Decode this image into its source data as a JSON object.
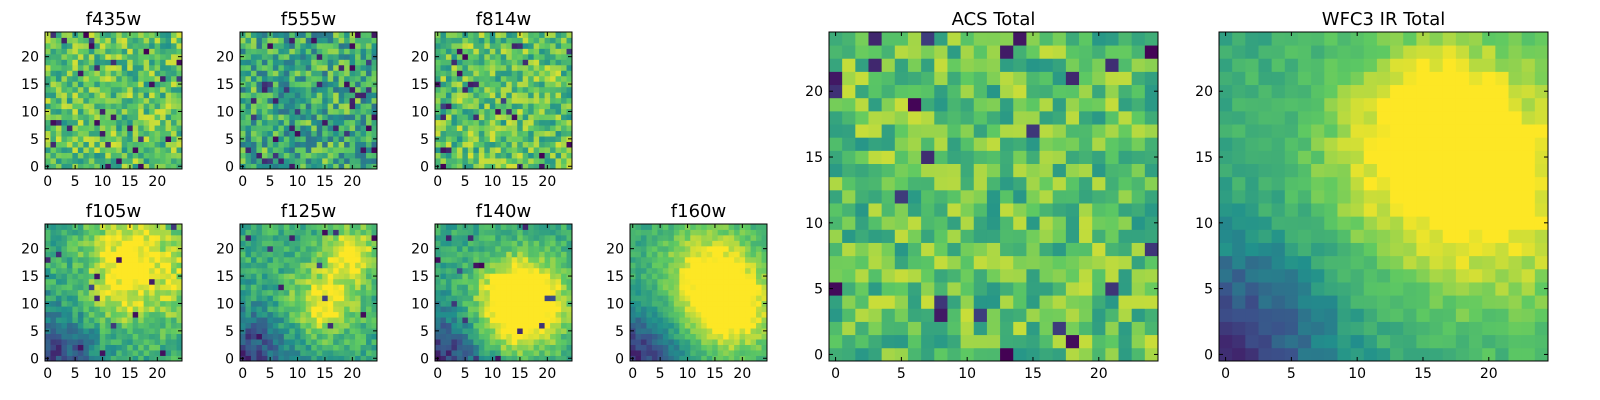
{
  "figure": {
    "description_colormap": "viridis",
    "colormap_stops": [
      "#440154",
      "#3b528b",
      "#21918c",
      "#5ec962",
      "#fde725"
    ]
  },
  "chart_data": [
    {
      "type": "heatmap",
      "title": "f435w",
      "grid": [
        25,
        25
      ],
      "xlim": [
        -0.5,
        24.5
      ],
      "ylim": [
        -0.5,
        24.5
      ],
      "xticks": [
        "0",
        "5",
        "10",
        "15",
        "20"
      ],
      "yticks": [
        "0",
        "5",
        "10",
        "15",
        "20"
      ],
      "pattern": "noise",
      "seed": 11,
      "level_mean": 0.72,
      "level_spread": 0.22,
      "dark_pixel_fraction": 0.04
    },
    {
      "type": "heatmap",
      "title": "f555w",
      "grid": [
        25,
        25
      ],
      "xlim": [
        -0.5,
        24.5
      ],
      "ylim": [
        -0.5,
        24.5
      ],
      "xticks": [
        "0",
        "5",
        "10",
        "15",
        "20"
      ],
      "yticks": [
        "0",
        "5",
        "10",
        "15",
        "20"
      ],
      "pattern": "noise",
      "seed": 23,
      "level_mean": 0.62,
      "level_spread": 0.25,
      "dark_pixel_fraction": 0.06
    },
    {
      "type": "heatmap",
      "title": "f814w",
      "grid": [
        25,
        25
      ],
      "xlim": [
        -0.5,
        24.5
      ],
      "ylim": [
        -0.5,
        24.5
      ],
      "xticks": [
        "0",
        "5",
        "10",
        "15",
        "20"
      ],
      "yticks": [
        "0",
        "5",
        "10",
        "15",
        "20"
      ],
      "pattern": "noise",
      "seed": 37,
      "level_mean": 0.72,
      "level_spread": 0.22,
      "dark_pixel_fraction": 0.05
    },
    {
      "type": "heatmap",
      "title": "f105w",
      "grid": [
        25,
        25
      ],
      "xlim": [
        -0.5,
        24.5
      ],
      "ylim": [
        -0.5,
        24.5
      ],
      "xticks": [
        "0",
        "5",
        "10",
        "15",
        "20"
      ],
      "yticks": [
        "0",
        "5",
        "10",
        "15",
        "20"
      ],
      "pattern": "smooth",
      "seed": 41,
      "level_mean": 0.62,
      "level_spread": 0.22,
      "dark_pixel_fraction": 0.02
    },
    {
      "type": "heatmap",
      "title": "f125w",
      "grid": [
        25,
        25
      ],
      "xlim": [
        -0.5,
        24.5
      ],
      "ylim": [
        -0.5,
        24.5
      ],
      "xticks": [
        "0",
        "5",
        "10",
        "15",
        "20"
      ],
      "yticks": [
        "0",
        "5",
        "10",
        "15",
        "20"
      ],
      "pattern": "smooth",
      "seed": 53,
      "level_mean": 0.62,
      "level_spread": 0.22,
      "dark_pixel_fraction": 0.02
    },
    {
      "type": "heatmap",
      "title": "f140w",
      "grid": [
        25,
        25
      ],
      "xlim": [
        -0.5,
        24.5
      ],
      "ylim": [
        -0.5,
        24.5
      ],
      "xticks": [
        "0",
        "5",
        "10",
        "15",
        "20"
      ],
      "yticks": [
        "0",
        "5",
        "10",
        "15",
        "20"
      ],
      "pattern": "smooth",
      "seed": 67,
      "level_mean": 0.6,
      "level_spread": 0.18,
      "dark_pixel_fraction": 0.02
    },
    {
      "type": "heatmap",
      "title": "f160w",
      "grid": [
        25,
        25
      ],
      "xlim": [
        -0.5,
        24.5
      ],
      "ylim": [
        -0.5,
        24.5
      ],
      "xticks": [
        "0",
        "5",
        "10",
        "15",
        "20"
      ],
      "yticks": [
        "0",
        "5",
        "10",
        "15",
        "20"
      ],
      "pattern": "smooth",
      "seed": 79,
      "level_mean": 0.6,
      "level_spread": 0.14,
      "dark_pixel_fraction": 0.0
    },
    {
      "type": "heatmap",
      "title": "ACS Total",
      "grid": [
        25,
        25
      ],
      "xlim": [
        -0.5,
        24.5
      ],
      "ylim": [
        -0.5,
        24.5
      ],
      "xticks": [
        "0",
        "5",
        "10",
        "15",
        "20"
      ],
      "yticks": [
        "0",
        "5",
        "10",
        "15",
        "20"
      ],
      "pattern": "noise",
      "seed": 97,
      "level_mean": 0.72,
      "level_spread": 0.2,
      "dark_pixel_fraction": 0.04
    },
    {
      "type": "heatmap",
      "title": "WFC3 IR Total",
      "grid": [
        25,
        25
      ],
      "xlim": [
        -0.5,
        24.5
      ],
      "ylim": [
        -0.5,
        24.5
      ],
      "xticks": [
        "0",
        "5",
        "10",
        "15",
        "20"
      ],
      "yticks": [
        "0",
        "5",
        "10",
        "15",
        "20"
      ],
      "pattern": "smooth",
      "seed": 101,
      "level_mean": 0.62,
      "level_spread": 0.12,
      "dark_pixel_fraction": 0.0
    }
  ]
}
